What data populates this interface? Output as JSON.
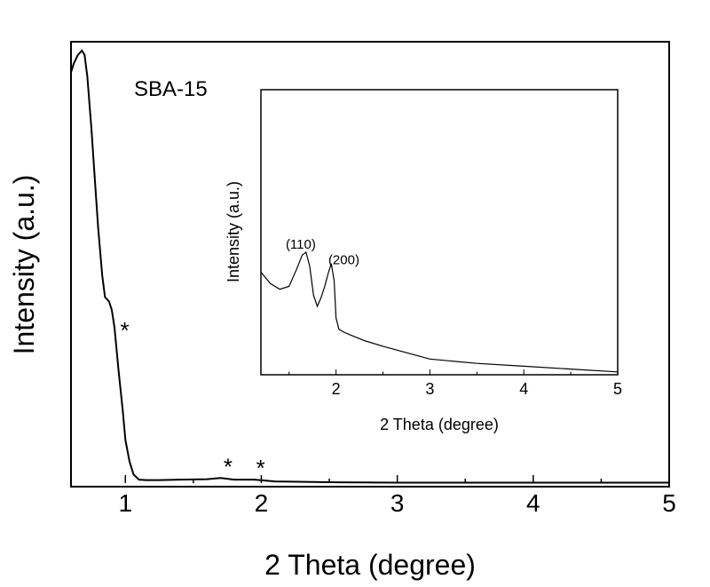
{
  "chart_data": [
    {
      "type": "line",
      "annotation": "SBA-15",
      "xlabel": "2 Theta (degree)",
      "ylabel": "Intensity (a.u.)",
      "xlim": [
        0.6,
        5
      ],
      "xticks": [
        "1",
        "2",
        "3",
        "4",
        "5"
      ],
      "yticks": [],
      "grid": false,
      "peak_markers": [
        {
          "label": "*",
          "x": 0.93
        },
        {
          "label": "*",
          "x": 1.69
        },
        {
          "label": "*",
          "x": 1.93
        }
      ],
      "series": [
        {
          "x": [
            0.6,
            0.62,
            0.65,
            0.68,
            0.7,
            0.72,
            0.75,
            0.78,
            0.8,
            0.83,
            0.85,
            0.88,
            0.9,
            0.92,
            0.95,
            0.98,
            1.0,
            1.03,
            1.06,
            1.1,
            1.15,
            1.25,
            1.4,
            1.6,
            1.7,
            1.8,
            1.95,
            2.1,
            2.5,
            3.0,
            4.0,
            5.0
          ],
          "y": [
            0.95,
            0.97,
            0.99,
            1.0,
            0.99,
            0.94,
            0.82,
            0.68,
            0.59,
            0.48,
            0.43,
            0.42,
            0.4,
            0.36,
            0.26,
            0.17,
            0.1,
            0.05,
            0.02,
            0.008,
            0.007,
            0.007,
            0.008,
            0.009,
            0.012,
            0.008,
            0.008,
            0.004,
            0.002,
            0.001,
            0.001,
            0.001
          ]
        }
      ]
    },
    {
      "type": "line",
      "role": "inset",
      "xlabel": "2 Theta (degree)",
      "ylabel": "Intensity (a.u.)",
      "xlim": [
        1.2,
        5
      ],
      "xticks": [
        "2",
        "3",
        "4",
        "5"
      ],
      "yticks": [],
      "grid": false,
      "peak_labels": [
        {
          "label": "(110)",
          "x": 1.7
        },
        {
          "label": "(200)",
          "x": 1.97
        }
      ],
      "series": [
        {
          "x": [
            1.2,
            1.3,
            1.4,
            1.5,
            1.58,
            1.64,
            1.68,
            1.72,
            1.76,
            1.8,
            1.84,
            1.88,
            1.92,
            1.95,
            1.98,
            2.0,
            2.03,
            2.08,
            2.15,
            2.3,
            2.5,
            3.0,
            3.5,
            4.0,
            4.5,
            5.0
          ],
          "y": [
            0.36,
            0.32,
            0.3,
            0.31,
            0.37,
            0.42,
            0.43,
            0.38,
            0.28,
            0.24,
            0.27,
            0.31,
            0.36,
            0.39,
            0.33,
            0.2,
            0.16,
            0.15,
            0.14,
            0.12,
            0.1,
            0.055,
            0.04,
            0.03,
            0.02,
            0.01
          ]
        }
      ]
    }
  ]
}
